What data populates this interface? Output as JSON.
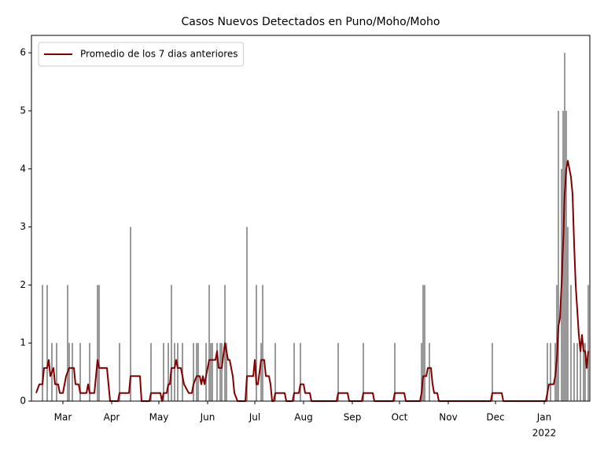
{
  "chart_data": {
    "type": "combo",
    "title": "Casos Nuevos Detectados en Puno/Moho/Moho",
    "xlim": [
      "2021-02-09",
      "2022-01-30"
    ],
    "xticks": [
      {
        "value": "2021-03-01",
        "label": "Mar"
      },
      {
        "value": "2021-04-01",
        "label": "Apr"
      },
      {
        "value": "2021-05-01",
        "label": "May"
      },
      {
        "value": "2021-06-01",
        "label": "Jun"
      },
      {
        "value": "2021-07-01",
        "label": "Jul"
      },
      {
        "value": "2021-08-01",
        "label": "Aug"
      },
      {
        "value": "2021-09-01",
        "label": "Sep"
      },
      {
        "value": "2021-10-01",
        "label": "Oct"
      },
      {
        "value": "2021-11-01",
        "label": "Nov"
      },
      {
        "value": "2021-12-01",
        "label": "Dec"
      },
      {
        "value": "2022-01-01",
        "label": "Jan"
      }
    ],
    "year_label": "2022",
    "ylim": [
      0,
      6.3
    ],
    "yticks": [
      0,
      1,
      2,
      3,
      4,
      5,
      6
    ],
    "legend": "upper left",
    "series": [
      {
        "type": "bar",
        "color": "#808080",
        "x": [
          "2021-02-16",
          "2021-02-19",
          "2021-02-22",
          "2021-02-25",
          "2021-03-04",
          "2021-03-05",
          "2021-03-07",
          "2021-03-12",
          "2021-03-18",
          "2021-03-23",
          "2021-03-24",
          "2021-04-06",
          "2021-04-13",
          "2021-04-26",
          "2021-05-04",
          "2021-05-07",
          "2021-05-09",
          "2021-05-11",
          "2021-05-13",
          "2021-05-16",
          "2021-05-23",
          "2021-05-25",
          "2021-05-26",
          "2021-05-31",
          "2021-06-02",
          "2021-06-03",
          "2021-06-04",
          "2021-06-07",
          "2021-06-09",
          "2021-06-10",
          "2021-06-12",
          "2021-06-13",
          "2021-06-26",
          "2021-07-02",
          "2021-07-05",
          "2021-07-06",
          "2021-07-14",
          "2021-07-26",
          "2021-07-30",
          "2021-08-23",
          "2021-09-08",
          "2021-09-28",
          "2021-10-15",
          "2021-10-16",
          "2021-10-17",
          "2021-10-20",
          "2021-11-29",
          "2022-01-03",
          "2022-01-05",
          "2022-01-08",
          "2022-01-09",
          "2022-01-10",
          "2022-01-12",
          "2022-01-13",
          "2022-01-14",
          "2022-01-15",
          "2022-01-16",
          "2022-01-18",
          "2022-01-20",
          "2022-01-22",
          "2022-01-24",
          "2022-01-26",
          "2022-01-27",
          "2022-01-29"
        ],
        "values": [
          2,
          2,
          1,
          1,
          2,
          1,
          1,
          1,
          1,
          2,
          2,
          1,
          3,
          1,
          1,
          1,
          2,
          1,
          1,
          1,
          1,
          1,
          1,
          1,
          2,
          1,
          1,
          1,
          1,
          1,
          2,
          1,
          3,
          2,
          1,
          2,
          1,
          1,
          1,
          1,
          1,
          1,
          1,
          2,
          2,
          1,
          1,
          1,
          1,
          1,
          2,
          5,
          4,
          5,
          6,
          5,
          3,
          2,
          1,
          1,
          1,
          1,
          1,
          2
        ]
      },
      {
        "type": "line",
        "name": "Promedio de los 7 dias anteriores",
        "color": "#800000",
        "x": [
          "2021-02-12",
          "2021-02-14",
          "2021-02-16",
          "2021-02-17",
          "2021-02-19",
          "2021-02-20",
          "2021-02-21",
          "2021-02-23",
          "2021-02-24",
          "2021-02-26",
          "2021-02-27",
          "2021-03-01",
          "2021-03-03",
          "2021-03-05",
          "2021-03-08",
          "2021-03-09",
          "2021-03-11",
          "2021-03-12",
          "2021-03-16",
          "2021-03-17",
          "2021-03-18",
          "2021-03-21",
          "2021-03-23",
          "2021-03-24",
          "2021-03-29",
          "2021-03-31",
          "2021-04-05",
          "2021-04-06",
          "2021-04-12",
          "2021-04-13",
          "2021-04-19",
          "2021-04-20",
          "2021-04-25",
          "2021-04-26",
          "2021-05-02",
          "2021-05-03",
          "2021-05-04",
          "2021-05-06",
          "2021-05-07",
          "2021-05-08",
          "2021-05-09",
          "2021-05-11",
          "2021-05-12",
          "2021-05-13",
          "2021-05-15",
          "2021-05-16",
          "2021-05-17",
          "2021-05-20",
          "2021-05-22",
          "2021-05-23",
          "2021-05-25",
          "2021-05-27",
          "2021-05-28",
          "2021-05-29",
          "2021-05-30",
          "2021-06-02",
          "2021-06-06",
          "2021-06-07",
          "2021-06-08",
          "2021-06-10",
          "2021-06-12",
          "2021-06-14",
          "2021-06-15",
          "2021-06-17",
          "2021-06-18",
          "2021-06-20",
          "2021-06-25",
          "2021-06-26",
          "2021-06-30",
          "2021-07-01",
          "2021-07-02",
          "2021-07-03",
          "2021-07-05",
          "2021-07-07",
          "2021-07-08",
          "2021-07-10",
          "2021-07-11",
          "2021-07-12",
          "2021-07-13",
          "2021-07-14",
          "2021-07-20",
          "2021-07-21",
          "2021-07-25",
          "2021-07-26",
          "2021-07-29",
          "2021-07-30",
          "2021-08-01",
          "2021-08-02",
          "2021-08-05",
          "2021-08-06",
          "2021-08-22",
          "2021-08-23",
          "2021-08-29",
          "2021-08-30",
          "2021-09-07",
          "2021-09-08",
          "2021-09-14",
          "2021-09-15",
          "2021-09-27",
          "2021-09-28",
          "2021-10-04",
          "2021-10-05",
          "2021-10-14",
          "2021-10-15",
          "2021-10-16",
          "2021-10-18",
          "2021-10-19",
          "2021-10-21",
          "2021-10-22",
          "2021-10-23",
          "2021-10-25",
          "2021-10-26",
          "2021-11-28",
          "2021-11-29",
          "2021-12-05",
          "2021-12-06",
          "2022-01-02",
          "2022-01-03",
          "2022-01-04",
          "2022-01-07",
          "2022-01-08",
          "2022-01-09",
          "2022-01-10",
          "2022-01-11",
          "2022-01-12",
          "2022-01-13",
          "2022-01-14",
          "2022-01-15",
          "2022-01-16",
          "2022-01-17",
          "2022-01-18",
          "2022-01-19",
          "2022-01-20",
          "2022-01-21",
          "2022-01-22",
          "2022-01-23",
          "2022-01-24",
          "2022-01-25",
          "2022-01-26",
          "2022-01-27",
          "2022-01-28",
          "2022-01-29"
        ],
        "values": [
          0.14,
          0.29,
          0.29,
          0.57,
          0.57,
          0.71,
          0.43,
          0.57,
          0.29,
          0.29,
          0.14,
          0.14,
          0.43,
          0.57,
          0.57,
          0.29,
          0.29,
          0.14,
          0.14,
          0.29,
          0.14,
          0.14,
          0.71,
          0.57,
          0.57,
          0,
          0,
          0.14,
          0.14,
          0.43,
          0.43,
          0,
          0,
          0.14,
          0.14,
          0,
          0.14,
          0.14,
          0.29,
          0.29,
          0.57,
          0.57,
          0.71,
          0.57,
          0.57,
          0.43,
          0.29,
          0.14,
          0.14,
          0.29,
          0.43,
          0.43,
          0.29,
          0.43,
          0.29,
          0.71,
          0.71,
          0.86,
          0.57,
          0.57,
          1.0,
          0.71,
          0.71,
          0.43,
          0.14,
          0,
          0,
          0.43,
          0.43,
          0.71,
          0.29,
          0.29,
          0.71,
          0.71,
          0.43,
          0.43,
          0.29,
          0,
          0,
          0.14,
          0.14,
          0,
          0,
          0.14,
          0.14,
          0.29,
          0.29,
          0.14,
          0.14,
          0,
          0,
          0.14,
          0.14,
          0,
          0,
          0.14,
          0.14,
          0,
          0,
          0.14,
          0.14,
          0,
          0,
          0.14,
          0.43,
          0.43,
          0.57,
          0.57,
          0.29,
          0.14,
          0.14,
          0,
          0,
          0.14,
          0.14,
          0,
          0,
          0.14,
          0.29,
          0.29,
          0.43,
          0.71,
          1.29,
          1.43,
          2.0,
          2.71,
          3.57,
          4.0,
          4.14,
          4.0,
          3.86,
          3.57,
          2.71,
          2.0,
          1.57,
          1.14,
          0.86,
          1.14,
          0.86,
          0.86,
          0.57,
          0.86
        ]
      }
    ]
  }
}
